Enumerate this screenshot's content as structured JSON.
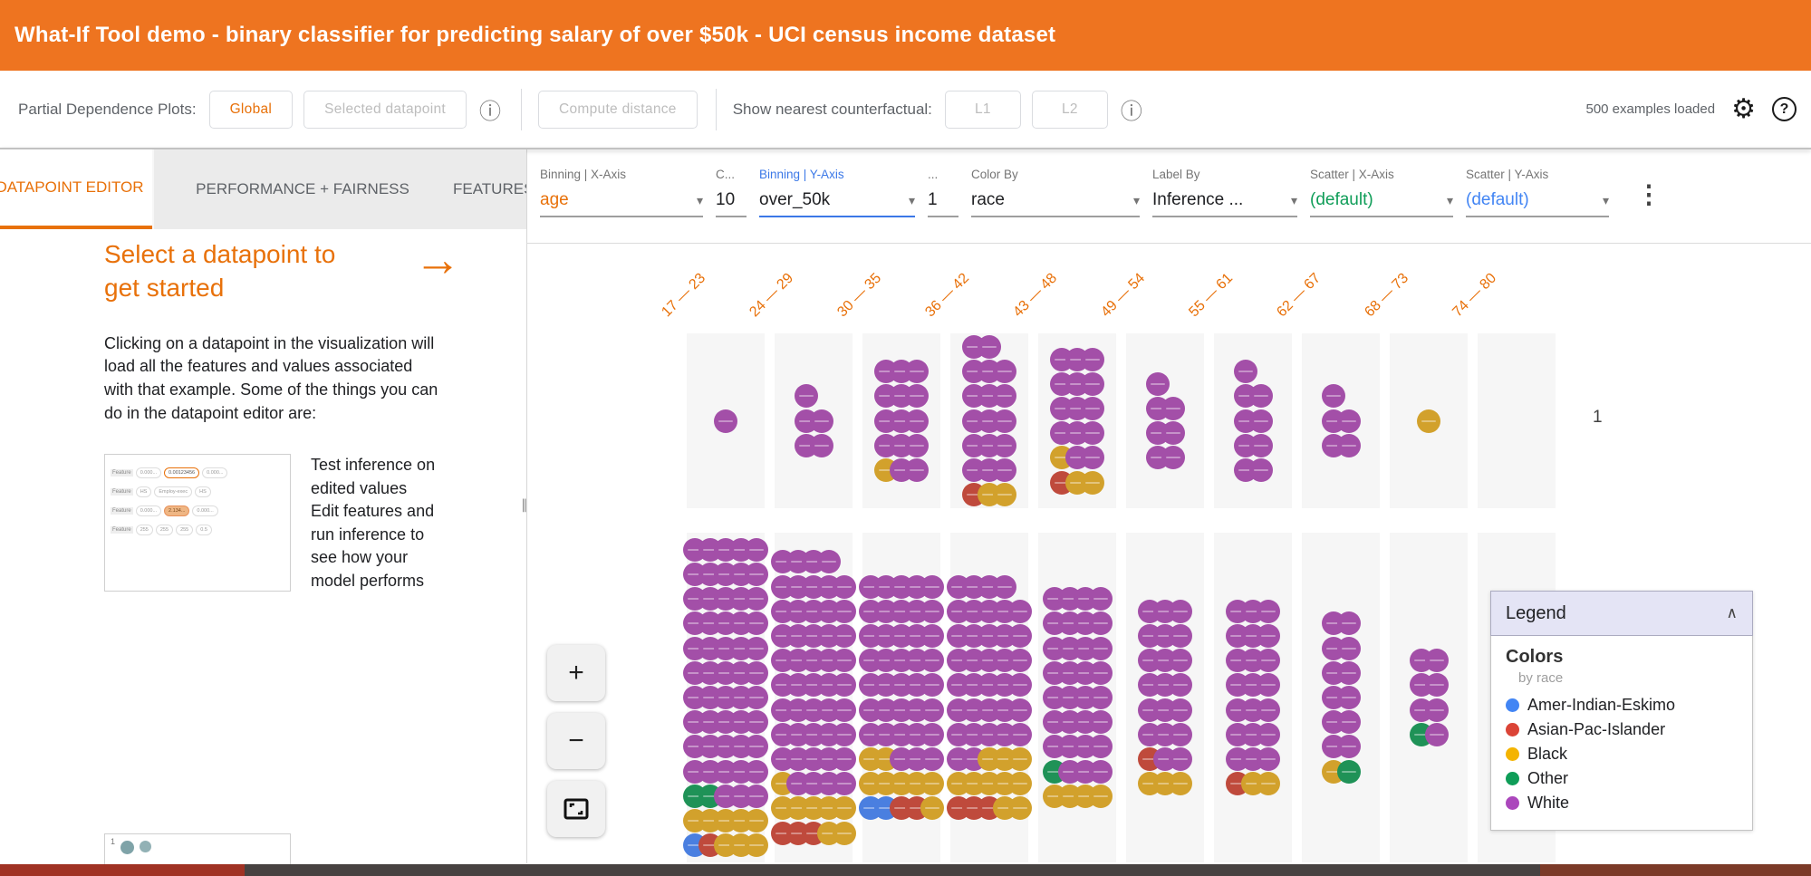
{
  "window": {
    "title": "What-If Tool demo - binary classifier for predicting salary of over $50k - UCI census income dataset"
  },
  "icons": {
    "info": "ⓘ",
    "gear": "⚙",
    "help": "?",
    "kebab": "⋮",
    "caret": "▾",
    "collapse": "∧",
    "arrow": "→",
    "zoom_in": "+",
    "zoom_out": "−",
    "pane_handle": "∥"
  },
  "toolbar": {
    "pdp_label": "Partial Dependence Plots:",
    "global_button": "Global",
    "selected_datapoint_button": "Selected datapoint",
    "compute_distance_button": "Compute distance",
    "counterfactual_label": "Show nearest counterfactual:",
    "l1_button": "L1",
    "l2_button": "L2",
    "examples_loaded": "500 examples loaded"
  },
  "tabs": {
    "items": [
      "DATAPOINT EDITOR",
      "PERFORMANCE + FAIRNESS",
      "FEATURES"
    ],
    "active": "DATAPOINT EDITOR"
  },
  "left_panel": {
    "heading": "Select a datapoint to get started",
    "paragraph": "Clicking on a datapoint in the visualization will load all the features and values associated with that example. Some of the things you can do in the datapoint editor are:",
    "bullets": [
      "Test inference on edited values",
      "Edit features and run inference to see how your model performs"
    ],
    "feature_editor_thumbnail": {
      "row_label": "Feature",
      "rows": [
        [
          {
            "text": "0.000...",
            "style": "plain"
          },
          {
            "text": "0.00123456",
            "style": "outline"
          },
          {
            "text": "0.000...",
            "style": "plain"
          }
        ],
        [
          {
            "text": "HS",
            "style": "plain"
          },
          {
            "text": "Employ-exec",
            "style": "plain"
          },
          {
            "text": "HS",
            "style": "plain"
          }
        ],
        [
          {
            "text": "0.000...",
            "style": "plain"
          },
          {
            "text": "2.134...",
            "style": "filled"
          },
          {
            "text": "0.000...",
            "style": "plain"
          }
        ],
        [
          {
            "text": "255",
            "style": "plain"
          },
          {
            "text": "255",
            "style": "plain"
          },
          {
            "text": "255",
            "style": "plain"
          },
          {
            "text": "0.5",
            "style": "plain"
          }
        ]
      ]
    },
    "partial_thumbnail": {
      "number": "1"
    }
  },
  "viz": {
    "controls": [
      {
        "label": "Binning | X-Axis",
        "value": "age",
        "value_color": "#E8710A",
        "caret": true
      },
      {
        "label": "C...",
        "value": "10",
        "caret": false
      },
      {
        "label": "Binning | Y-Axis",
        "label_color": "#3B78E7",
        "value": "over_50k",
        "underline_color": "#3B78E7",
        "caret": true
      },
      {
        "label": "...",
        "value": "1",
        "caret": false
      },
      {
        "label": "Color By",
        "value": "race",
        "caret": true
      },
      {
        "label": "Label By",
        "value": "Inference ...",
        "caret": true
      },
      {
        "label": "Scatter | X-Axis",
        "value": "(default)",
        "value_color": "#0F9D58",
        "caret": true
      },
      {
        "label": "Scatter | Y-Axis",
        "value": "(default)",
        "value_color": "#4285F4",
        "caret": true
      }
    ],
    "zoom_in_label": "+",
    "zoom_out_label": "−"
  },
  "legend": {
    "title": "Legend",
    "section": "Colors",
    "subtitle": "by race",
    "items": [
      {
        "label": "Amer-Indian-Eskimo",
        "color": "#4285F4"
      },
      {
        "label": "Asian-Pac-Islander",
        "color": "#DB4437"
      },
      {
        "label": "Black",
        "color": "#F4B400"
      },
      {
        "label": "Other",
        "color": "#0F9D58"
      },
      {
        "label": "White",
        "color": "#AB47BC"
      }
    ]
  },
  "colors": {
    "accent_orange": "#E8710A",
    "header_background": "#EE7420",
    "dot_palette": {
      "U": "#4A7FE0",
      "R": "#BF4A3C",
      "B": "#D2A12C",
      "O": "#1F9257",
      "W": "#A34FA8"
    },
    "bottom_bar": [
      "#A03224",
      "#474241",
      "#7B3A28"
    ]
  },
  "chart_data": {
    "type": "binned-dot-matrix",
    "title": "Datapoints binned by age (x) and over_50k (y), colored by race",
    "x_binning": "age",
    "y_binning": "over_50k",
    "color_by": "race",
    "label_by": "Inference ...",
    "color_key": {
      "U": "Amer-Indian-Eskimo",
      "R": "Asian-Pac-Islander",
      "B": "Black",
      "O": "Other",
      "W": "White"
    },
    "bins": [
      "17 — 23",
      "24 — 29",
      "30 — 35",
      "36 — 42",
      "43 — 48",
      "49 — 54",
      "55 — 61",
      "62 — 67",
      "68 — 73",
      "74 — 80"
    ],
    "rows": [
      {
        "label": "1",
        "grids": [
          [
            [
              "W"
            ]
          ],
          [
            [
              "W"
            ],
            [
              "W",
              "W"
            ],
            [
              "W",
              "W"
            ]
          ],
          [
            [
              "W",
              "W",
              "W"
            ],
            [
              "W",
              "W",
              "W"
            ],
            [
              "W",
              "W",
              "W"
            ],
            [
              "W",
              "W",
              "W"
            ],
            [
              "B",
              "W",
              "W"
            ]
          ],
          [
            [
              "W",
              "W"
            ],
            [
              "W",
              "W",
              "W"
            ],
            [
              "W",
              "W",
              "W"
            ],
            [
              "W",
              "W",
              "W"
            ],
            [
              "W",
              "W",
              "W"
            ],
            [
              "W",
              "W",
              "W"
            ],
            [
              "R",
              "B",
              "B"
            ]
          ],
          [
            [
              "W",
              "W",
              "W"
            ],
            [
              "W",
              "W",
              "W"
            ],
            [
              "W",
              "W",
              "W"
            ],
            [
              "W",
              "W",
              "W"
            ],
            [
              "B",
              "W",
              "W"
            ],
            [
              "R",
              "B",
              "B"
            ]
          ],
          [
            [
              "W"
            ],
            [
              "W",
              "W"
            ],
            [
              "W",
              "W"
            ],
            [
              "W",
              "W"
            ]
          ],
          [
            [
              "W"
            ],
            [
              "W",
              "W"
            ],
            [
              "W",
              "W"
            ],
            [
              "W",
              "W"
            ],
            [
              "W",
              "W"
            ]
          ],
          [
            [
              "W"
            ],
            [
              "W",
              "W"
            ],
            [
              "W",
              "W"
            ]
          ],
          [
            [
              "B"
            ]
          ],
          []
        ]
      },
      {
        "label": "",
        "grids": [
          [
            [
              "W",
              "W",
              "W",
              "W",
              "W"
            ],
            [
              "W",
              "W",
              "W",
              "W",
              "W"
            ],
            [
              "W",
              "W",
              "W",
              "W",
              "W"
            ],
            [
              "W",
              "W",
              "W",
              "W",
              "W"
            ],
            [
              "W",
              "W",
              "W",
              "W",
              "W"
            ],
            [
              "W",
              "W",
              "W",
              "W",
              "W"
            ],
            [
              "W",
              "W",
              "W",
              "W",
              "W"
            ],
            [
              "W",
              "W",
              "W",
              "W",
              "W"
            ],
            [
              "W",
              "W",
              "W",
              "W",
              "W"
            ],
            [
              "W",
              "W",
              "W",
              "W",
              "W"
            ],
            [
              "O",
              "O",
              "W",
              "W",
              "W"
            ],
            [
              "B",
              "B",
              "B",
              "B",
              "B"
            ],
            [
              "U",
              "R",
              "B",
              "B",
              "B"
            ]
          ],
          [
            [
              "W",
              "W",
              "W",
              "W"
            ],
            [
              "W",
              "W",
              "W",
              "W",
              "W"
            ],
            [
              "W",
              "W",
              "W",
              "W",
              "W"
            ],
            [
              "W",
              "W",
              "W",
              "W",
              "W"
            ],
            [
              "W",
              "W",
              "W",
              "W",
              "W"
            ],
            [
              "W",
              "W",
              "W",
              "W",
              "W"
            ],
            [
              "W",
              "W",
              "W",
              "W",
              "W"
            ],
            [
              "W",
              "W",
              "W",
              "W",
              "W"
            ],
            [
              "W",
              "W",
              "W",
              "W",
              "W"
            ],
            [
              "B",
              "W",
              "W",
              "W",
              "W"
            ],
            [
              "B",
              "B",
              "B",
              "B",
              "B"
            ],
            [
              "R",
              "R",
              "R",
              "B",
              "B"
            ]
          ],
          [
            [
              "W",
              "W",
              "W",
              "W",
              "W"
            ],
            [
              "W",
              "W",
              "W",
              "W",
              "W"
            ],
            [
              "W",
              "W",
              "W",
              "W",
              "W"
            ],
            [
              "W",
              "W",
              "W",
              "W",
              "W"
            ],
            [
              "W",
              "W",
              "W",
              "W",
              "W"
            ],
            [
              "W",
              "W",
              "W",
              "W",
              "W"
            ],
            [
              "W",
              "W",
              "W",
              "W",
              "W"
            ],
            [
              "B",
              "B",
              "W",
              "W",
              "W"
            ],
            [
              "B",
              "B",
              "B",
              "B",
              "B"
            ],
            [
              "U",
              "U",
              "R",
              "R",
              "B"
            ]
          ],
          [
            [
              "W",
              "W",
              "W",
              "W"
            ],
            [
              "W",
              "W",
              "W",
              "W",
              "W"
            ],
            [
              "W",
              "W",
              "W",
              "W",
              "W"
            ],
            [
              "W",
              "W",
              "W",
              "W",
              "W"
            ],
            [
              "W",
              "W",
              "W",
              "W",
              "W"
            ],
            [
              "W",
              "W",
              "W",
              "W",
              "W"
            ],
            [
              "W",
              "W",
              "W",
              "W",
              "W"
            ],
            [
              "W",
              "W",
              "B",
              "B",
              "B"
            ],
            [
              "B",
              "B",
              "B",
              "B",
              "B"
            ],
            [
              "R",
              "R",
              "R",
              "B",
              "B"
            ]
          ],
          [
            [
              "W",
              "W",
              "W",
              "W"
            ],
            [
              "W",
              "W",
              "W",
              "W"
            ],
            [
              "W",
              "W",
              "W",
              "W"
            ],
            [
              "W",
              "W",
              "W",
              "W"
            ],
            [
              "W",
              "W",
              "W",
              "W"
            ],
            [
              "W",
              "W",
              "W",
              "W"
            ],
            [
              "W",
              "W",
              "W",
              "W"
            ],
            [
              "O",
              "W",
              "W",
              "W"
            ],
            [
              "B",
              "B",
              "B",
              "B"
            ]
          ],
          [
            [
              "W",
              "W",
              "W"
            ],
            [
              "W",
              "W",
              "W"
            ],
            [
              "W",
              "W",
              "W"
            ],
            [
              "W",
              "W",
              "W"
            ],
            [
              "W",
              "W",
              "W"
            ],
            [
              "W",
              "W",
              "W"
            ],
            [
              "R",
              "W",
              "W"
            ],
            [
              "B",
              "B",
              "B"
            ]
          ],
          [
            [
              "W",
              "W",
              "W"
            ],
            [
              "W",
              "W",
              "W"
            ],
            [
              "W",
              "W",
              "W"
            ],
            [
              "W",
              "W",
              "W"
            ],
            [
              "W",
              "W",
              "W"
            ],
            [
              "W",
              "W",
              "W"
            ],
            [
              "W",
              "W",
              "W"
            ],
            [
              "R",
              "B",
              "B"
            ]
          ],
          [
            [
              "W",
              "W"
            ],
            [
              "W",
              "W"
            ],
            [
              "W",
              "W"
            ],
            [
              "W",
              "W"
            ],
            [
              "W",
              "W"
            ],
            [
              "W",
              "W"
            ],
            [
              "B",
              "O"
            ]
          ],
          [
            [
              "W",
              "W"
            ],
            [
              "W",
              "W"
            ],
            [
              "W",
              "W"
            ],
            [
              "O",
              "W"
            ]
          ],
          [
            [
              "W",
              "W"
            ],
            [
              "W",
              "W"
            ],
            [
              "W",
              "W"
            ],
            [
              "W",
              "W"
            ],
            [
              "W",
              "W"
            ],
            [
              "B",
              "W"
            ]
          ]
        ]
      }
    ]
  }
}
